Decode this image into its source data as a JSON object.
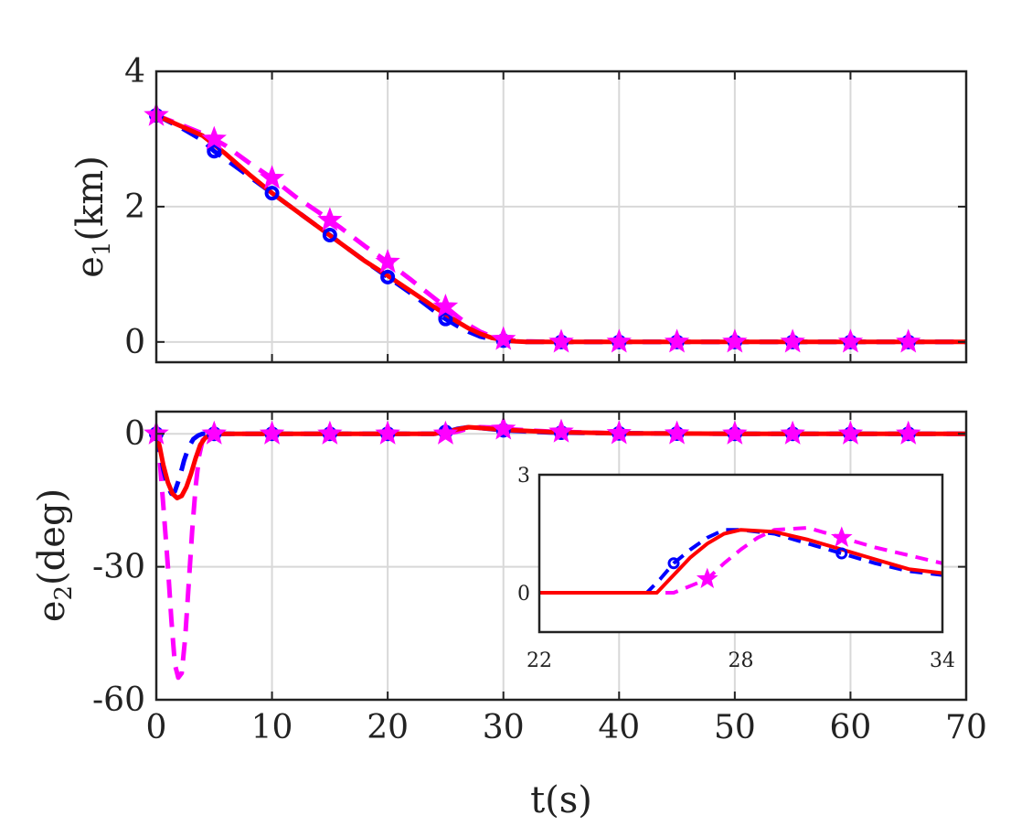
{
  "chart_data": [
    {
      "type": "line",
      "panel": "top",
      "ylabel_main": "e",
      "ylabel_sub": "1",
      "ylabel_unit": "(km)",
      "xlim": [
        0,
        70
      ],
      "ylim": [
        -0.3,
        4
      ],
      "yticks": [
        "0",
        "2",
        "4"
      ],
      "ytick_values": [
        0,
        2,
        4
      ],
      "xgrid": [
        0,
        10,
        20,
        30,
        40,
        50,
        60,
        70
      ],
      "grid": true,
      "colors": {
        "red": "#ff0000",
        "blue": "#0000ff",
        "magenta": "#ff00ff"
      },
      "series": [
        {
          "color": "#ff0000",
          "style": "solid",
          "marker": "none",
          "x": [
            0,
            2,
            4,
            6,
            8,
            10,
            12,
            14,
            16,
            18,
            20,
            22,
            24,
            26,
            27,
            28,
            29,
            30,
            31,
            32,
            34,
            40,
            50,
            60,
            70
          ],
          "y": [
            3.35,
            3.2,
            3.05,
            2.78,
            2.48,
            2.2,
            1.95,
            1.7,
            1.45,
            1.2,
            0.98,
            0.75,
            0.52,
            0.3,
            0.2,
            0.12,
            0.06,
            0.03,
            0.01,
            0.0,
            0.0,
            0.0,
            0.0,
            0.0,
            0.0
          ]
        },
        {
          "color": "#0000ff",
          "style": "dashed",
          "marker": "circle",
          "x": [
            0,
            2,
            4,
            5,
            6,
            8,
            10,
            12,
            14,
            15,
            16,
            18,
            20,
            22,
            24,
            25,
            26,
            27,
            28,
            29,
            30,
            31,
            32,
            34,
            40,
            50,
            60,
            70
          ],
          "y": [
            3.35,
            3.18,
            2.98,
            2.82,
            2.7,
            2.45,
            2.2,
            1.95,
            1.7,
            1.58,
            1.45,
            1.2,
            0.96,
            0.72,
            0.46,
            0.34,
            0.24,
            0.15,
            0.08,
            0.04,
            0.02,
            0.01,
            0.0,
            0.0,
            0.0,
            0.0,
            0.0,
            0.0
          ],
          "marker_x": [
            0,
            5,
            10,
            15,
            20,
            25,
            30,
            35,
            40,
            45,
            50,
            55,
            60,
            65
          ]
        },
        {
          "color": "#ff00ff",
          "style": "dashed",
          "marker": "star",
          "x": [
            0,
            2,
            4,
            5,
            6,
            8,
            10,
            12,
            14,
            15,
            16,
            18,
            20,
            22,
            24,
            25,
            26,
            27,
            28,
            29,
            30,
            31,
            32,
            34,
            40,
            50,
            60,
            70
          ],
          "y": [
            3.35,
            3.22,
            3.08,
            3.0,
            2.9,
            2.65,
            2.42,
            2.15,
            1.92,
            1.8,
            1.68,
            1.42,
            1.18,
            0.92,
            0.65,
            0.52,
            0.38,
            0.25,
            0.15,
            0.08,
            0.04,
            0.02,
            0.01,
            0.0,
            0.0,
            0.0,
            0.0,
            0.0
          ],
          "marker_x": [
            0,
            5,
            10,
            15,
            20,
            25,
            30,
            35,
            40,
            45,
            50,
            55,
            60,
            65
          ]
        }
      ]
    },
    {
      "type": "line",
      "panel": "bottom",
      "xlabel": "t(s)",
      "ylabel_main": "e",
      "ylabel_sub": "2",
      "ylabel_unit": "(deg)",
      "xlim": [
        0,
        70
      ],
      "ylim": [
        -60,
        5
      ],
      "xticks": [
        "0",
        "10",
        "20",
        "30",
        "40",
        "50",
        "60",
        "70"
      ],
      "xtick_values": [
        0,
        10,
        20,
        30,
        40,
        50,
        60,
        70
      ],
      "yticks": [
        "0",
        "-30",
        "-60"
      ],
      "ytick_values": [
        0,
        -30,
        -60
      ],
      "grid": true,
      "series": [
        {
          "color": "#ff0000",
          "style": "solid",
          "marker": "none",
          "x": [
            0,
            0.3,
            0.6,
            1.0,
            1.4,
            1.8,
            2.2,
            2.6,
            3.0,
            3.4,
            3.8,
            4.2,
            4.6,
            5,
            10,
            20,
            24,
            25,
            26,
            27,
            28,
            30,
            34,
            40,
            50,
            60,
            70
          ],
          "y": [
            0,
            -3,
            -7,
            -11,
            -13.5,
            -14.5,
            -14,
            -12,
            -9,
            -5.5,
            -2.5,
            -1,
            -0.3,
            0,
            0,
            0,
            0,
            0.4,
            1.0,
            1.5,
            1.3,
            0.9,
            0.4,
            0.1,
            0,
            0,
            0
          ]
        },
        {
          "color": "#0000ff",
          "style": "dashed",
          "marker": "circle",
          "x": [
            0,
            0.3,
            0.6,
            1.0,
            1.3,
            1.6,
            2.0,
            2.4,
            2.8,
            3.2,
            3.6,
            4.0,
            5,
            10,
            20,
            24,
            25,
            26,
            27,
            28,
            30,
            34,
            40,
            50,
            60,
            70
          ],
          "y": [
            0,
            -4,
            -8,
            -12,
            -13.5,
            -13,
            -10,
            -6,
            -3,
            -1.2,
            -0.4,
            0,
            0,
            0,
            0,
            0,
            0.4,
            1.1,
            1.5,
            1.3,
            0.8,
            0.3,
            0.1,
            0,
            0,
            0
          ],
          "marker_x": [
            0,
            5,
            10,
            15,
            20,
            25,
            30,
            35,
            40,
            45,
            50,
            55,
            60,
            65
          ]
        },
        {
          "color": "#ff00ff",
          "style": "dashed",
          "marker": "star",
          "x": [
            0,
            0.3,
            0.6,
            1.0,
            1.3,
            1.6,
            1.9,
            2.2,
            2.5,
            2.8,
            3.1,
            3.4,
            3.7,
            4.0,
            4.4,
            5,
            10,
            20,
            25,
            26,
            27,
            28,
            29,
            30,
            34,
            40,
            50,
            60,
            70
          ],
          "y": [
            0,
            -6,
            -16,
            -30,
            -42,
            -52,
            -55,
            -54,
            -46,
            -34,
            -22,
            -12,
            -5,
            -1.5,
            -0.3,
            0,
            0,
            0,
            0,
            0.5,
            1.2,
            1.5,
            1.4,
            1.1,
            0.5,
            0.1,
            0,
            0,
            0
          ],
          "marker_x": [
            0,
            5,
            10,
            15,
            20,
            25,
            30,
            35,
            40,
            45,
            50,
            55,
            60,
            65
          ]
        }
      ]
    },
    {
      "type": "line",
      "panel": "inset",
      "xlim": [
        22,
        34
      ],
      "ylim": [
        -1,
        3
      ],
      "xticks": [
        "22",
        "28",
        "34"
      ],
      "xtick_values": [
        22,
        28,
        34
      ],
      "yticks": [
        "3",
        "0"
      ],
      "ytick_values": [
        3,
        0
      ],
      "grid": false,
      "series": [
        {
          "color": "#ff0000",
          "style": "solid",
          "marker": "none",
          "x": [
            22,
            23,
            24,
            25.5,
            26,
            26.5,
            27,
            27.5,
            28,
            29,
            30,
            31,
            32,
            33,
            34
          ],
          "y": [
            0,
            0,
            0,
            0,
            0.45,
            0.9,
            1.25,
            1.5,
            1.6,
            1.55,
            1.35,
            1.1,
            0.85,
            0.6,
            0.5
          ]
        },
        {
          "color": "#0000ff",
          "style": "dashed",
          "marker": "circle",
          "x": [
            22,
            23,
            24,
            25.2,
            25.6,
            26,
            26.5,
            27,
            27.5,
            28,
            29,
            30,
            31,
            32,
            33,
            34
          ],
          "y": [
            0,
            0,
            0,
            0,
            0.35,
            0.75,
            1.1,
            1.4,
            1.6,
            1.6,
            1.5,
            1.25,
            1.0,
            0.75,
            0.55,
            0.45
          ],
          "marker_x": [
            26,
            31
          ]
        },
        {
          "color": "#ff00ff",
          "style": "dashed",
          "marker": "star",
          "x": [
            22,
            23,
            24,
            26,
            27,
            27.5,
            28,
            28.5,
            29,
            30,
            31,
            32,
            33,
            34
          ],
          "y": [
            0,
            0,
            0,
            0,
            0.35,
            0.75,
            1.1,
            1.4,
            1.6,
            1.65,
            1.4,
            1.15,
            0.95,
            0.75
          ],
          "marker_x": [
            27,
            31
          ]
        }
      ]
    }
  ]
}
